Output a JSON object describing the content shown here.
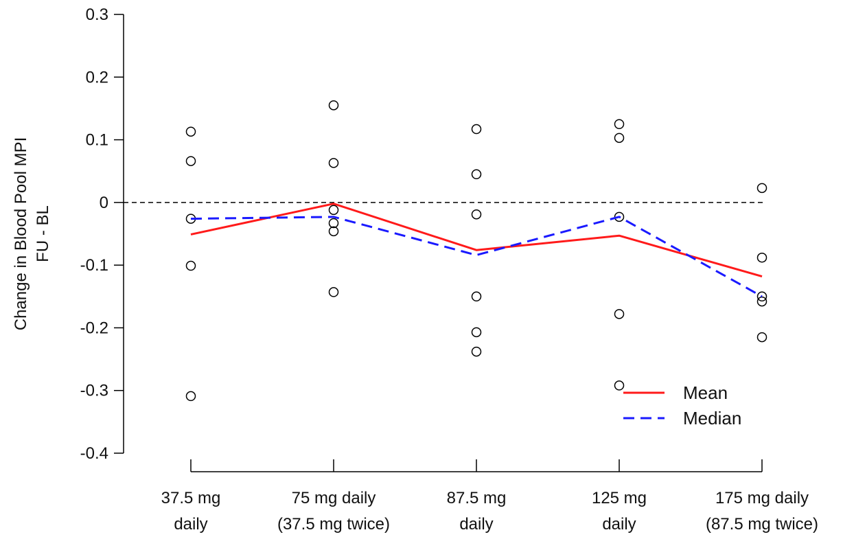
{
  "chart_data": {
    "type": "scatter",
    "title": "",
    "ylabel_lines": [
      "Change in Blood Pool MPI",
      "FU - BL"
    ],
    "xlabel": "",
    "ylim": [
      -0.4,
      0.3
    ],
    "yticks": [
      -0.4,
      -0.3,
      -0.2,
      -0.1,
      0,
      0.1,
      0.2,
      0.3
    ],
    "ytick_labels": [
      "-0.4",
      "-0.3",
      "-0.2",
      "-0.1",
      "0",
      "0.1",
      "0.2",
      "0.3"
    ],
    "categories": [
      [
        "37.5 mg",
        "daily"
      ],
      [
        "75 mg daily",
        "(37.5 mg twice)"
      ],
      [
        "87.5 mg",
        "daily"
      ],
      [
        "125 mg",
        "daily"
      ],
      [
        "175 mg daily",
        "(87.5 mg twice)"
      ]
    ],
    "points": [
      [
        0.113,
        0.066,
        -0.026,
        -0.101,
        -0.309
      ],
      [
        0.155,
        0.063,
        -0.012,
        -0.033,
        -0.046,
        -0.143
      ],
      [
        0.117,
        0.045,
        -0.019,
        -0.15,
        -0.207,
        -0.238
      ],
      [
        0.125,
        0.103,
        -0.023,
        -0.178,
        -0.292
      ],
      [
        0.023,
        -0.088,
        -0.15,
        -0.158,
        -0.215
      ]
    ],
    "reference_line": {
      "y": 0,
      "style": "dashed",
      "color": "#000000"
    },
    "series": [
      {
        "name": "Mean",
        "values": [
          -0.051,
          -0.002,
          -0.076,
          -0.053,
          -0.118
        ],
        "color": "#ff1a1a",
        "style": "solid"
      },
      {
        "name": "Median",
        "values": [
          -0.026,
          -0.023,
          -0.084,
          -0.023,
          -0.15
        ],
        "color": "#1a1aff",
        "style": "dashed"
      }
    ],
    "legend": {
      "position": "bottom-right",
      "items": [
        "Mean",
        "Median"
      ]
    },
    "grid": false
  }
}
